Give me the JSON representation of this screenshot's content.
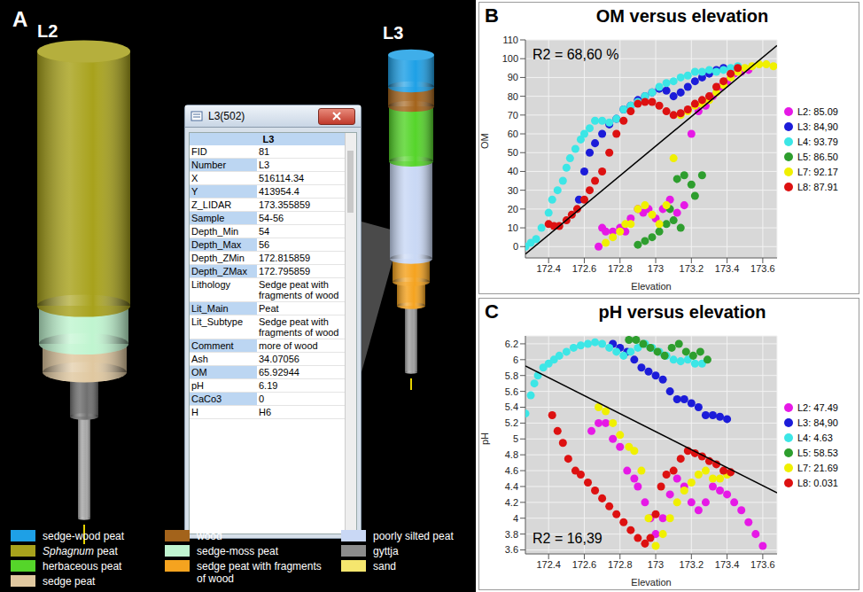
{
  "panel_a": {
    "panel": "A",
    "core_labels": [
      "L2",
      "L3"
    ],
    "popup": {
      "title": "L3(502)",
      "header": "L3",
      "rows": [
        [
          "FID",
          "81"
        ],
        [
          "Number",
          "L3"
        ],
        [
          "X",
          "516114.34"
        ],
        [
          "Y",
          "413954.4"
        ],
        [
          "Z_LIDAR",
          "173.355859"
        ],
        [
          "Sample",
          "54-56"
        ],
        [
          "Depth_Min",
          "54"
        ],
        [
          "Depth_Max",
          "56"
        ],
        [
          "Depth_ZMin",
          "172.815859"
        ],
        [
          "Depth_ZMax",
          "172.795859"
        ],
        [
          "Lithology",
          "Sedge peat with fragments of wood"
        ],
        [
          "Lit_Main",
          "Peat"
        ],
        [
          "Lit_Subtype",
          "Sedge peat with fragments of wood"
        ],
        [
          "Comment",
          "more of wood"
        ],
        [
          "Ash",
          "34.07056"
        ],
        [
          "OM",
          "65.92944"
        ],
        [
          "pH",
          "6.19"
        ],
        [
          "CaCo3",
          "0"
        ],
        [
          "H",
          "H6"
        ]
      ]
    },
    "legend": [
      {
        "label": "sedge-wood peat",
        "color": "#1ea0e6"
      },
      {
        "label": "Sphagnum peat",
        "color": "#a8a21c"
      },
      {
        "label": "herbaceous peat",
        "color": "#55d52a"
      },
      {
        "label": "sedge peat",
        "color": "#e0c8a0"
      },
      {
        "label": "wood",
        "color": "#a3631b"
      },
      {
        "label": "sedge-moss peat",
        "color": "#c0f5d0"
      },
      {
        "label": "sedge peat with fragments of wood",
        "color": "#f5a31f"
      },
      {
        "label": "poorly silted peat",
        "color": "#c9d8f5"
      },
      {
        "label": "gyttja",
        "color": "#8c8c8c"
      },
      {
        "label": "sand",
        "color": "#f5e66e"
      }
    ]
  },
  "chart_data": [
    {
      "panel": "B",
      "type": "scatter",
      "title": "OM versus elevation",
      "x_label": "Elevation",
      "y_label": "OM",
      "xlim": [
        172.27,
        173.68
      ],
      "ylim": [
        -6,
        110
      ],
      "xticks": [
        172.4,
        172.6,
        172.8,
        173,
        173.2,
        173.4,
        173.6
      ],
      "yticks": [
        0,
        10,
        20,
        30,
        40,
        50,
        60,
        70,
        80,
        90,
        100,
        110
      ],
      "grid": true,
      "legend": "right",
      "annotations": [
        "R2 = 68,60 %"
      ],
      "series": [
        {
          "name": "L2: 85.09",
          "color": "#e619e6",
          "marker": "circle",
          "x": [
            172.68,
            172.7,
            172.72,
            172.76,
            172.8,
            172.83,
            172.86,
            172.9,
            172.93,
            172.96,
            173.0,
            173.04,
            173.08,
            173.12,
            173.16,
            173.2,
            173.24,
            173.28,
            173.32,
            173.36,
            173.4,
            173.44,
            173.48,
            173.52
          ],
          "values": [
            0,
            10,
            8,
            8,
            10,
            8,
            15,
            20,
            18,
            20,
            15,
            20,
            25,
            18,
            22,
            60,
            72,
            75,
            80,
            85,
            88,
            92,
            93,
            94
          ]
        },
        {
          "name": "L3: 84,90",
          "color": "#1c1cd9",
          "marker": "circle",
          "x": [
            172.57,
            172.6,
            172.63,
            172.66,
            172.7,
            172.74,
            172.78,
            172.82,
            172.86,
            172.9,
            172.94,
            172.98,
            173.02,
            173.06,
            173.1,
            173.14,
            173.18,
            173.22,
            173.26,
            173.3,
            173.34,
            173.38
          ],
          "values": [
            25,
            40,
            50,
            55,
            60,
            65,
            68,
            73,
            75,
            78,
            80,
            82,
            84,
            83,
            80,
            82,
            85,
            88,
            90,
            92,
            94,
            95
          ]
        },
        {
          "name": "L4: 93.79",
          "color": "#3ce6e6",
          "marker": "circle",
          "x": [
            172.27,
            172.3,
            172.33,
            172.36,
            172.4,
            172.42,
            172.45,
            172.48,
            172.5,
            172.52,
            172.55,
            172.58,
            172.6,
            172.63,
            172.66,
            172.7,
            172.74,
            172.78,
            172.82,
            172.86,
            172.9,
            172.94,
            172.98,
            173.02,
            173.06,
            173.1,
            173.14,
            173.18,
            173.22,
            173.26,
            173.3,
            173.34,
            173.38,
            173.42,
            173.46
          ],
          "values": [
            0,
            2,
            4,
            10,
            18,
            25,
            30,
            35,
            42,
            47,
            52,
            57,
            60,
            63,
            67,
            67,
            66,
            68,
            73,
            75,
            77,
            80,
            82,
            85,
            87,
            88,
            90,
            91,
            93,
            93,
            94,
            93,
            94,
            95,
            96
          ]
        },
        {
          "name": "L5: 86.50",
          "color": "#2e9e2e",
          "marker": "circle",
          "x": [
            172.9,
            172.94,
            172.98,
            173.02,
            173.06,
            173.08,
            173.1,
            173.12,
            173.14,
            173.16,
            173.2,
            173.22,
            173.26
          ],
          "values": [
            1,
            3,
            5,
            8,
            12,
            20,
            14,
            36,
            10,
            38,
            33,
            27,
            38
          ]
        },
        {
          "name": "L7: 92.17",
          "color": "#f0f000",
          "marker": "circle",
          "x": [
            172.72,
            172.76,
            172.8,
            172.83,
            172.86,
            172.9,
            172.94,
            172.98,
            173.02,
            173.06,
            173.1,
            173.14,
            173.18,
            173.22,
            173.26,
            173.3,
            173.34,
            173.38,
            173.42,
            173.46,
            173.5,
            173.54,
            173.58,
            173.62,
            173.66
          ],
          "values": [
            2,
            5,
            8,
            12,
            12,
            20,
            22,
            17,
            12,
            22,
            47,
            70,
            72,
            75,
            76,
            78,
            82,
            86,
            90,
            93,
            95,
            96,
            97,
            97,
            96
          ]
        },
        {
          "name": "L8: 87.91",
          "color": "#dd1111",
          "marker": "circle",
          "x": [
            172.4,
            172.43,
            172.46,
            172.5,
            172.53,
            172.56,
            172.6,
            172.63,
            172.66,
            172.7,
            172.74,
            172.78,
            172.82,
            172.86,
            172.9,
            172.94,
            172.98,
            173.02,
            173.06,
            173.1,
            173.14,
            173.18,
            173.22,
            173.26,
            173.3,
            173.34,
            173.38,
            173.42,
            173.46
          ],
          "values": [
            12,
            11,
            11,
            14,
            17,
            20,
            25,
            30,
            35,
            40,
            50,
            60,
            67,
            72,
            76,
            77,
            77,
            75,
            72,
            70,
            71,
            73,
            76,
            78,
            80,
            85,
            88,
            92,
            95
          ]
        },
        {
          "type": "line",
          "color": "#000000",
          "line_style": "solid",
          "x": [
            172.27,
            173.68
          ],
          "values": [
            -4,
            107
          ]
        }
      ]
    },
    {
      "panel": "C",
      "type": "scatter",
      "title": "pH versus elevation",
      "x_label": "Elevation",
      "y_label": "pH",
      "xlim": [
        172.27,
        173.68
      ],
      "ylim": [
        3.55,
        6.3
      ],
      "xticks": [
        172.4,
        172.6,
        172.8,
        173,
        173.2,
        173.4,
        173.6
      ],
      "yticks": [
        3.6,
        3.8,
        4,
        4.2,
        4.4,
        4.6,
        4.8,
        5,
        5.2,
        5.4,
        5.6,
        5.8,
        6,
        6.2
      ],
      "grid": true,
      "legend": "right",
      "annotations": [
        "R2 = 16,39"
      ],
      "series": [
        {
          "name": "L2: 47.49",
          "color": "#e619e6",
          "marker": "circle",
          "x": [
            172.64,
            172.68,
            172.72,
            172.76,
            172.8,
            172.84,
            172.88,
            172.9,
            172.94,
            172.97,
            173.0,
            173.04,
            173.08,
            173.12,
            173.16,
            173.2,
            173.24,
            173.28,
            173.32,
            173.36,
            173.4,
            173.44,
            173.48,
            173.52,
            173.56,
            173.6
          ],
          "values": [
            5.1,
            5.2,
            5.2,
            5.0,
            4.9,
            4.6,
            4.5,
            4.4,
            4.2,
            4.0,
            3.8,
            4.0,
            4.3,
            4.5,
            4.4,
            4.2,
            4.1,
            4.2,
            4.4,
            4.35,
            4.3,
            4.2,
            4.1,
            3.95,
            3.8,
            3.65
          ]
        },
        {
          "name": "L3: 84,90",
          "color": "#1c1cd9",
          "marker": "circle",
          "x": [
            172.76,
            172.8,
            172.84,
            172.88,
            172.92,
            172.96,
            173.0,
            173.04,
            173.08,
            173.12,
            173.16,
            173.2,
            173.24,
            173.28,
            173.32,
            173.36,
            173.4
          ],
          "values": [
            6.2,
            6.15,
            6.1,
            6.0,
            5.9,
            5.85,
            5.8,
            5.75,
            5.6,
            5.5,
            5.5,
            5.45,
            5.4,
            5.3,
            5.3,
            5.28,
            5.25
          ]
        },
        {
          "name": "L4: 4.63",
          "color": "#3ce6e6",
          "marker": "circle",
          "x": [
            172.27,
            172.3,
            172.32,
            172.34,
            172.37,
            172.4,
            172.43,
            172.46,
            172.5,
            172.54,
            172.58,
            172.62,
            172.66,
            172.7,
            172.74,
            172.78,
            172.82,
            172.86,
            172.9,
            172.94,
            172.98,
            173.02,
            173.06,
            173.1,
            173.14,
            173.18,
            173.22,
            173.26
          ],
          "values": [
            5.32,
            5.55,
            5.7,
            5.8,
            5.9,
            5.95,
            6.0,
            6.05,
            6.1,
            6.15,
            6.18,
            6.2,
            6.22,
            6.2,
            6.15,
            6.1,
            6.05,
            6.1,
            6.15,
            6.2,
            6.15,
            6.1,
            6.05,
            6.0,
            5.98,
            6.0,
            5.95,
            5.95
          ]
        },
        {
          "name": "L5: 58.53",
          "color": "#2e9e2e",
          "marker": "circle",
          "x": [
            172.85,
            172.89,
            172.93,
            172.97,
            173.01,
            173.05,
            173.09,
            173.13,
            173.17,
            173.21,
            173.25,
            173.29
          ],
          "values": [
            6.25,
            6.25,
            6.2,
            6.15,
            6.1,
            6.05,
            6.15,
            6.2,
            6.1,
            6.05,
            6.1,
            6.0
          ]
        },
        {
          "name": "L7: 21.69",
          "color": "#f0f000",
          "marker": "circle",
          "x": [
            172.68,
            172.72,
            172.76,
            172.8,
            172.85,
            172.88,
            172.92,
            172.96,
            173.0,
            173.04,
            173.08,
            173.12,
            173.16,
            173.2,
            173.24,
            173.28,
            173.32,
            173.36,
            173.4
          ],
          "values": [
            5.4,
            5.35,
            5.2,
            5.05,
            4.9,
            4.85,
            4.6,
            4.0,
            3.65,
            3.8,
            4.0,
            4.2,
            4.35,
            4.45,
            4.55,
            4.6,
            4.5,
            4.5,
            4.55
          ]
        },
        {
          "name": "L8: 0.031",
          "color": "#dd1111",
          "marker": "circle",
          "x": [
            172.42,
            172.45,
            172.48,
            172.51,
            172.55,
            172.58,
            172.62,
            172.66,
            172.7,
            172.74,
            172.78,
            172.82,
            172.86,
            172.9,
            172.94,
            172.97,
            173.0,
            173.03,
            173.06,
            173.1,
            173.14,
            173.18,
            173.22,
            173.26,
            173.3,
            173.34,
            173.38,
            173.42
          ],
          "values": [
            5.3,
            5.1,
            4.95,
            4.75,
            4.6,
            4.55,
            4.45,
            4.35,
            4.25,
            4.15,
            4.05,
            3.95,
            3.85,
            3.75,
            3.68,
            3.75,
            4.05,
            4.4,
            4.55,
            4.6,
            4.75,
            4.85,
            4.82,
            4.78,
            4.72,
            4.68,
            4.6,
            4.58
          ]
        },
        {
          "type": "line",
          "color": "#000000",
          "line_style": "solid",
          "x": [
            172.27,
            173.68
          ],
          "values": [
            5.92,
            4.32
          ]
        }
      ]
    }
  ]
}
